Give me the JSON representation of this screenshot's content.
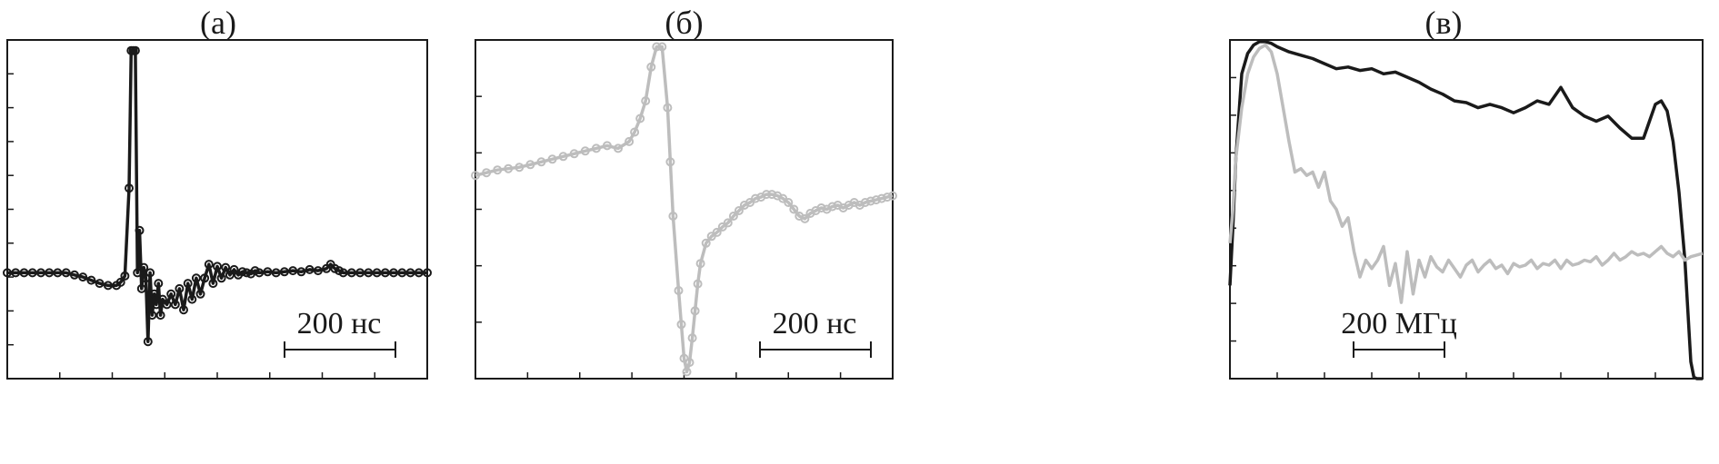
{
  "chart_data": [
    {
      "type": "line",
      "label": "(а)",
      "scale_bar": {
        "label": "200 нс",
        "value": 200
      },
      "xlim": [
        0,
        1000
      ],
      "ylim": [
        -1.0,
        2.2
      ],
      "marker": "circle",
      "series": [
        {
          "color": "#1a1a1a",
          "x": [
            0,
            20,
            40,
            60,
            80,
            100,
            120,
            140,
            160,
            180,
            200,
            220,
            240,
            260,
            270,
            280,
            290,
            295,
            300,
            305,
            310,
            315,
            320,
            325,
            330,
            335,
            340,
            345,
            350,
            355,
            360,
            365,
            370,
            380,
            390,
            400,
            410,
            420,
            430,
            440,
            450,
            460,
            470,
            480,
            490,
            500,
            510,
            520,
            530,
            540,
            550,
            560,
            570,
            580,
            590,
            600,
            620,
            640,
            660,
            680,
            700,
            720,
            740,
            760,
            770,
            780,
            790,
            800,
            820,
            840,
            860,
            880,
            900,
            920,
            940,
            960,
            980,
            1000
          ],
          "y": [
            0,
            0,
            0,
            0,
            0,
            0,
            0,
            0,
            -0.02,
            -0.04,
            -0.07,
            -0.1,
            -0.12,
            -0.12,
            -0.09,
            -0.03,
            0.8,
            2.1,
            2.1,
            2.1,
            0.0,
            0.4,
            -0.15,
            0.05,
            -0.05,
            -0.65,
            0.0,
            -0.4,
            -0.2,
            -0.3,
            -0.1,
            -0.4,
            -0.25,
            -0.3,
            -0.2,
            -0.3,
            -0.15,
            -0.35,
            -0.1,
            -0.25,
            -0.05,
            -0.2,
            -0.05,
            0.08,
            -0.1,
            0.06,
            -0.05,
            0.05,
            -0.02,
            0.03,
            -0.02,
            0.01,
            0.0,
            -0.01,
            0.02,
            0.0,
            0.01,
            0.0,
            0.01,
            0.02,
            0.01,
            0.03,
            0.02,
            0.04,
            0.08,
            0.04,
            0.02,
            0.0,
            0.0,
            0.0,
            0.0,
            0.0,
            0.0,
            0.0,
            0.0,
            0.0,
            0.0,
            0.0
          ]
        }
      ]
    },
    {
      "type": "line",
      "label": "(б)",
      "scale_bar": {
        "label": "200 нс",
        "value": 200
      },
      "xlim": [
        0,
        760
      ],
      "ylim": [
        -1.0,
        1.5
      ],
      "marker": "circle",
      "series": [
        {
          "color": "#bdbdbd",
          "x": [
            0,
            20,
            40,
            60,
            80,
            100,
            120,
            140,
            160,
            180,
            200,
            220,
            240,
            260,
            280,
            290,
            300,
            310,
            320,
            330,
            340,
            350,
            355,
            360,
            370,
            375,
            380,
            385,
            390,
            395,
            400,
            405,
            410,
            420,
            430,
            440,
            450,
            460,
            470,
            480,
            490,
            500,
            510,
            520,
            530,
            540,
            550,
            560,
            570,
            580,
            590,
            600,
            610,
            620,
            630,
            640,
            650,
            660,
            670,
            680,
            690,
            700,
            710,
            720,
            730,
            740,
            750,
            760
          ],
          "y": [
            0.5,
            0.52,
            0.54,
            0.55,
            0.56,
            0.58,
            0.6,
            0.62,
            0.64,
            0.66,
            0.68,
            0.7,
            0.72,
            0.7,
            0.75,
            0.82,
            0.92,
            1.05,
            1.3,
            1.45,
            1.45,
            1.0,
            0.6,
            0.2,
            -0.35,
            -0.6,
            -0.85,
            -0.95,
            -0.88,
            -0.7,
            -0.5,
            -0.3,
            -0.15,
            0.0,
            0.05,
            0.08,
            0.12,
            0.15,
            0.2,
            0.24,
            0.28,
            0.3,
            0.33,
            0.34,
            0.36,
            0.36,
            0.35,
            0.33,
            0.3,
            0.25,
            0.2,
            0.18,
            0.22,
            0.24,
            0.26,
            0.25,
            0.27,
            0.28,
            0.26,
            0.28,
            0.3,
            0.28,
            0.3,
            0.31,
            0.32,
            0.33,
            0.34,
            0.35
          ]
        }
      ]
    },
    {
      "type": "line",
      "label": "(в)",
      "scale_bar": {
        "label": "200 МГц",
        "value": 200
      },
      "xlim": [
        0,
        800
      ],
      "ylim": [
        -1.0,
        1.0
      ],
      "series": [
        {
          "color": "#1a1a1a",
          "x": [
            0,
            5,
            10,
            20,
            30,
            40,
            50,
            60,
            70,
            80,
            100,
            120,
            140,
            160,
            180,
            200,
            220,
            240,
            260,
            280,
            300,
            320,
            340,
            360,
            380,
            400,
            420,
            440,
            460,
            480,
            500,
            520,
            540,
            560,
            580,
            600,
            620,
            640,
            660,
            680,
            700,
            710,
            720,
            730,
            740,
            750,
            760,
            770,
            780,
            785,
            790,
            795,
            800
          ],
          "y": [
            -0.45,
            -0.1,
            0.3,
            0.8,
            0.92,
            0.97,
            0.99,
            0.99,
            0.98,
            0.96,
            0.93,
            0.91,
            0.89,
            0.86,
            0.83,
            0.84,
            0.82,
            0.83,
            0.8,
            0.81,
            0.78,
            0.75,
            0.71,
            0.68,
            0.64,
            0.63,
            0.6,
            0.62,
            0.6,
            0.57,
            0.6,
            0.64,
            0.62,
            0.72,
            0.6,
            0.55,
            0.52,
            0.55,
            0.48,
            0.42,
            0.42,
            0.52,
            0.62,
            0.64,
            0.58,
            0.4,
            0.1,
            -0.3,
            -0.9,
            -0.99,
            -1.0,
            -1.0,
            -1.0
          ],
          "marker": "none"
        },
        {
          "color": "#bdbdbd",
          "x": [
            0,
            5,
            10,
            20,
            30,
            40,
            50,
            60,
            70,
            80,
            90,
            100,
            110,
            120,
            130,
            140,
            150,
            160,
            170,
            180,
            190,
            200,
            210,
            220,
            230,
            240,
            250,
            260,
            270,
            280,
            290,
            300,
            310,
            320,
            330,
            340,
            350,
            360,
            370,
            380,
            390,
            400,
            410,
            420,
            430,
            440,
            450,
            460,
            470,
            480,
            490,
            500,
            510,
            520,
            530,
            540,
            550,
            560,
            570,
            580,
            590,
            600,
            610,
            620,
            630,
            640,
            650,
            660,
            670,
            680,
            690,
            700,
            710,
            720,
            730,
            740,
            750,
            760,
            770,
            780,
            790,
            800
          ],
          "y": [
            -0.2,
            0.0,
            0.3,
            0.6,
            0.8,
            0.9,
            0.95,
            0.97,
            0.93,
            0.8,
            0.6,
            0.4,
            0.22,
            0.24,
            0.2,
            0.22,
            0.13,
            0.22,
            0.05,
            0.0,
            -0.1,
            -0.05,
            -0.25,
            -0.4,
            -0.3,
            -0.35,
            -0.3,
            -0.22,
            -0.45,
            -0.32,
            -0.55,
            -0.25,
            -0.5,
            -0.3,
            -0.4,
            -0.28,
            -0.34,
            -0.37,
            -0.3,
            -0.35,
            -0.4,
            -0.33,
            -0.3,
            -0.37,
            -0.33,
            -0.3,
            -0.35,
            -0.33,
            -0.38,
            -0.32,
            -0.34,
            -0.33,
            -0.3,
            -0.35,
            -0.32,
            -0.33,
            -0.3,
            -0.35,
            -0.3,
            -0.33,
            -0.32,
            -0.3,
            -0.31,
            -0.28,
            -0.33,
            -0.3,
            -0.26,
            -0.3,
            -0.28,
            -0.25,
            -0.27,
            -0.26,
            -0.28,
            -0.25,
            -0.22,
            -0.26,
            -0.28,
            -0.25,
            -0.3,
            -0.28,
            -0.27,
            -0.26
          ],
          "marker": "none"
        }
      ]
    }
  ]
}
